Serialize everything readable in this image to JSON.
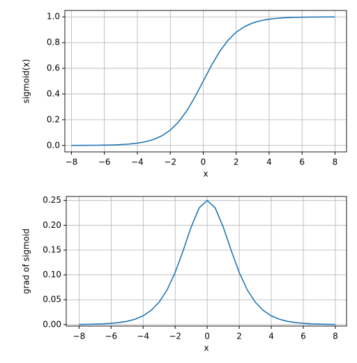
{
  "chart_data": [
    {
      "type": "line",
      "xlabel": "x",
      "ylabel": "sigmoid(x)",
      "x": [
        -8,
        -7.5,
        -7,
        -6.5,
        -6,
        -5.5,
        -5,
        -4.5,
        -4,
        -3.5,
        -3,
        -2.5,
        -2,
        -1.5,
        -1,
        -0.5,
        0,
        0.5,
        1,
        1.5,
        2,
        2.5,
        3,
        3.5,
        4,
        4.5,
        5,
        5.5,
        6,
        6.5,
        7,
        7.5,
        8
      ],
      "series": [
        {
          "color": "#1f77b4",
          "values": [
            0.0003,
            0.0006,
            0.0009,
            0.0015,
            0.0025,
            0.0041,
            0.0067,
            0.011,
            0.018,
            0.0293,
            0.0474,
            0.0759,
            0.1192,
            0.1824,
            0.2689,
            0.3775,
            0.5,
            0.6225,
            0.7311,
            0.8176,
            0.8808,
            0.9241,
            0.9526,
            0.9707,
            0.982,
            0.989,
            0.9933,
            0.9959,
            0.9975,
            0.9985,
            0.9991,
            0.9994,
            0.9997
          ]
        }
      ],
      "xlim": [
        -8.4,
        8.7
      ],
      "ylim": [
        -0.05,
        1.05
      ],
      "xticks": [
        {
          "value": -8,
          "label": "−8"
        },
        {
          "value": -6,
          "label": "−6"
        },
        {
          "value": -4,
          "label": "−4"
        },
        {
          "value": -2,
          "label": "−2"
        },
        0,
        2,
        4,
        6,
        8
      ],
      "yticks": [
        {
          "value": 0,
          "label": "0.0"
        },
        0.2,
        0.4,
        0.6,
        0.8,
        {
          "value": 1,
          "label": "1.0"
        }
      ],
      "grid": true
    },
    {
      "type": "line",
      "xlabel": "x",
      "ylabel": "grad of sigmoid",
      "x": [
        -8,
        -7.5,
        -7,
        -6.5,
        -6,
        -5.5,
        -5,
        -4.5,
        -4,
        -3.5,
        -3,
        -2.5,
        -2,
        -1.5,
        -1,
        -0.5,
        0,
        0.5,
        1,
        1.5,
        2,
        2.5,
        3,
        3.5,
        4,
        4.5,
        5,
        5.5,
        6,
        6.5,
        7,
        7.5,
        8
      ],
      "series": [
        {
          "color": "#1f77b4",
          "values": [
            0.0003,
            0.0006,
            0.0009,
            0.0015,
            0.0025,
            0.0041,
            0.0066,
            0.0109,
            0.0177,
            0.0285,
            0.0452,
            0.0701,
            0.105,
            0.1491,
            0.1966,
            0.235,
            0.25,
            0.235,
            0.1966,
            0.1491,
            0.105,
            0.0701,
            0.0452,
            0.0285,
            0.0177,
            0.0109,
            0.0066,
            0.0041,
            0.0025,
            0.0015,
            0.0009,
            0.0006,
            0.0003
          ]
        }
      ],
      "xlim": [
        -8.8,
        8.7
      ],
      "ylim": [
        -0.003,
        0.258
      ],
      "xticks": [
        {
          "value": -8,
          "label": "−8"
        },
        {
          "value": -6,
          "label": "−6"
        },
        {
          "value": -4,
          "label": "−4"
        },
        {
          "value": -2,
          "label": "−2"
        },
        0,
        2,
        4,
        6,
        8
      ],
      "yticks": [
        {
          "value": 0,
          "label": "0.00"
        },
        {
          "value": 0.05,
          "label": "0.05"
        },
        {
          "value": 0.1,
          "label": "0.10"
        },
        {
          "value": 0.15,
          "label": "0.15"
        },
        {
          "value": 0.2,
          "label": "0.20"
        },
        {
          "value": 0.25,
          "label": "0.25"
        }
      ],
      "grid": true
    }
  ]
}
